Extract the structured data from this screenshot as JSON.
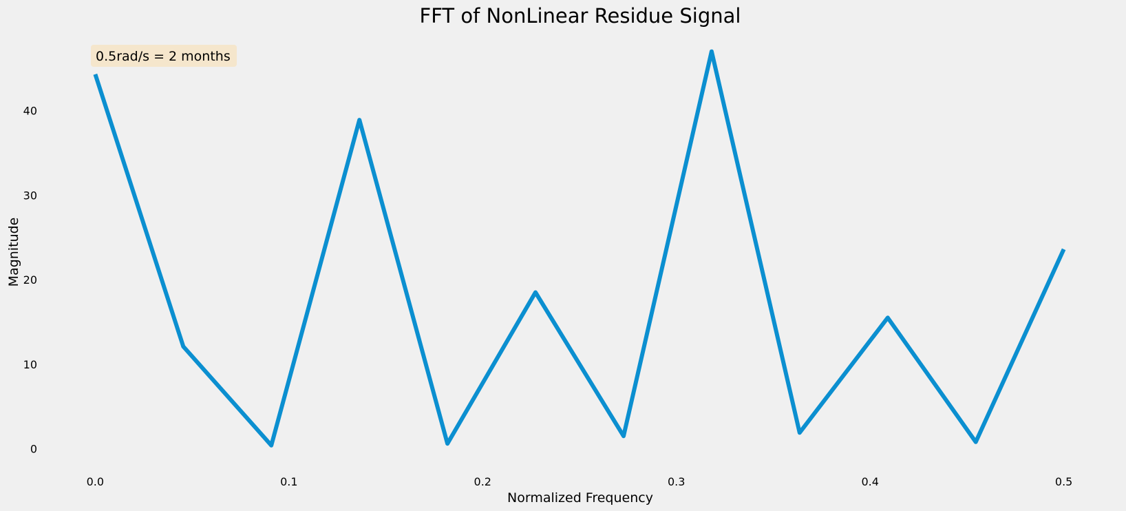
{
  "chart_data": {
    "type": "line",
    "title": "FFT of NonLinear Residue Signal",
    "xlabel": "Normalized Frequency",
    "ylabel": "Magnitude",
    "xlim": [
      -0.025,
      0.525
    ],
    "ylim": [
      -1.5,
      49.5
    ],
    "xticks": [
      0.0,
      0.1,
      0.2,
      0.3,
      0.4,
      0.5
    ],
    "xtick_labels": [
      "0.0",
      "0.1",
      "0.2",
      "0.3",
      "0.4",
      "0.5"
    ],
    "yticks": [
      0,
      10,
      20,
      30,
      40
    ],
    "ytick_labels": [
      "0",
      "10",
      "20",
      "30",
      "40"
    ],
    "grid": false,
    "annotation": {
      "text": "0.5rad/s = 2 months",
      "position": "top-left",
      "background": "#f5e6cc"
    },
    "colors": {
      "line": "#0b8fd0",
      "background": "#f0f0f0"
    },
    "series": [
      {
        "x": [
          0.0,
          0.04545,
          0.09091,
          0.13636,
          0.18182,
          0.22727,
          0.27273,
          0.31818,
          0.36364,
          0.40909,
          0.45455,
          0.5
        ],
        "y": [
          44.3,
          12.1,
          0.4,
          38.9,
          0.6,
          18.5,
          1.5,
          47.0,
          1.9,
          15.5,
          0.8,
          23.6
        ]
      }
    ]
  }
}
